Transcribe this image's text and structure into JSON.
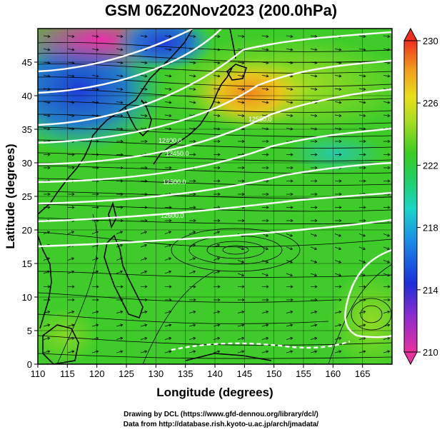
{
  "title": "GSM 06Z20Nov2023 (200.0hPa)",
  "x_axis": {
    "label": "Longitude (degrees)",
    "ticks": [
      "110",
      "115",
      "120",
      "125",
      "130",
      "135",
      "140",
      "145",
      "150",
      "155",
      "160",
      "165"
    ],
    "range": [
      110,
      170
    ]
  },
  "y_axis": {
    "label": "Latitude  (degrees)",
    "ticks": [
      "0",
      "5",
      "10",
      "15",
      "20",
      "25",
      "30",
      "35",
      "40",
      "45"
    ],
    "range": [
      0,
      50
    ]
  },
  "colorbar": {
    "ticks": [
      "230",
      "226",
      "222",
      "218",
      "214",
      "210"
    ],
    "range": [
      210,
      230
    ],
    "colors": [
      "#e8309e",
      "#7a2bd6",
      "#1b3fd8",
      "#18b6e8",
      "#19d6a0",
      "#2fcc2a",
      "#7fd624",
      "#e8e01a",
      "#f2a21c",
      "#ee3a20"
    ]
  },
  "contour_labels": [
    "12400.0",
    "12450.0",
    "12500.0",
    "12600.0",
    "12550.0"
  ],
  "credits": {
    "line1": "Drawing by DCL (https://www.gfd-dennou.org/library/dcl/)",
    "line2": "Data from http://database.rish.kyoto-u.ac.jp/arch/jmadata/"
  }
}
